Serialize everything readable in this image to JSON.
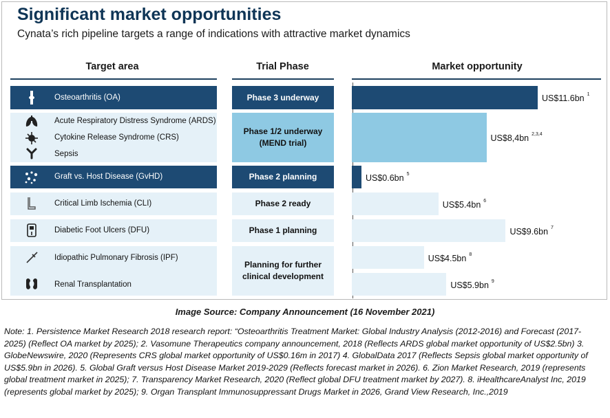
{
  "header": {
    "title": "Significant market opportunities",
    "subtitle": "Cynata’s rich pipeline targets a range of indications with attractive market dynamics"
  },
  "columns": {
    "target": "Target area",
    "phase": "Trial Phase",
    "market": "Market opportunity"
  },
  "rows": [
    {
      "label": "Osteoarthritis (OA)",
      "icon": "knee-joint-icon"
    },
    {
      "label": "Acute Respiratory Distress Syndrome (ARDS)",
      "icon": "lungs-icon"
    },
    {
      "label": "Cytokine Release Syndrome (CRS)",
      "icon": "virus-icon"
    },
    {
      "label": "Sepsis",
      "icon": "antibody-icon"
    },
    {
      "label": "Graft vs. Host Disease (GvHD)",
      "icon": "cells-icon"
    },
    {
      "label": "Critical Limb Ischemia (CLI)",
      "icon": "leg-icon"
    },
    {
      "label": "Diabetic Foot Ulcers (DFU)",
      "icon": "glucose-meter-icon"
    },
    {
      "label": "Idiopathic Pulmonary Fibrosis (IPF)",
      "icon": "syringe-icon"
    },
    {
      "label": "Renal Transplantation",
      "icon": "kidneys-icon"
    }
  ],
  "phases": {
    "oa": "Phase 3 underway",
    "ards_line1": "Phase 1/2 underway",
    "ards_line2": "(MEND trial)",
    "gvhd": "Phase 2 planning",
    "cli": "Phase 2 ready",
    "dfu": "Phase 1 planning",
    "ipf_line1": "Planning for further",
    "ipf_line2": "clinical development"
  },
  "colors": {
    "dark": "#1d4a73",
    "mid": "#8ec9e3",
    "light": "#e5f1f8",
    "title": "#0f3556"
  },
  "chart_data": {
    "type": "bar",
    "orientation": "horizontal",
    "title": "Market opportunity",
    "categories": [
      "Osteoarthritis (OA)",
      "ARDS / CRS / Sepsis",
      "Graft vs. Host Disease (GvHD)",
      "Critical Limb Ischemia (CLI)",
      "Diabetic Foot Ulcers (DFU)",
      "Idiopathic Pulmonary Fibrosis (IPF)",
      "Renal Transplantation"
    ],
    "values": [
      11.6,
      8.4,
      0.6,
      5.4,
      9.6,
      4.5,
      5.9
    ],
    "value_labels": [
      "US$11.6bn",
      "US$8,4bn",
      "US$0.6bn",
      "US$5.4bn",
      "US$9.6bn",
      "US$4.5bn",
      "US$5.9bn"
    ],
    "footnotes": [
      "1",
      "2,3,4",
      "5",
      "6",
      "7",
      "8",
      "9"
    ],
    "unit": "US$ bn"
  },
  "source": "Image Source: Company Announcement (16 November 2021)",
  "note": "Note: 1. Persistence Market Research 2018 research report: “Osteoarthritis Treatment Market: Global Industry Analysis (2012-2016) and Forecast (2017-2025) (Reflect OA market by 2025); 2. Vasomune Therapeutics company announcement, 2018 (Reflects ARDS global market opportunity of US$2.5bn) 3. GlobeNewswire, 2020 (Represents CRS global market opportunity of US$0.16m in 2017) 4. GlobalData 2017 (Reflects Sepsis global market opportunity of US$5.9bn in 2026). 5. Global Graft versus Host Disease Market 2019-2029 (Reflects forecast market in 2026). 6. Zion Market Research, 2019 (represents global treatment market in 2025); 7. Transparency Market Research, 2020 (Reflect global DFU treatment market by 2027). 8. iHealthcareAnalyst Inc, 2019 (represents global market by 2025); 9. Organ Transplant Immunosuppressant Drugs Market in 2026, Grand View Research, Inc.,2019"
}
